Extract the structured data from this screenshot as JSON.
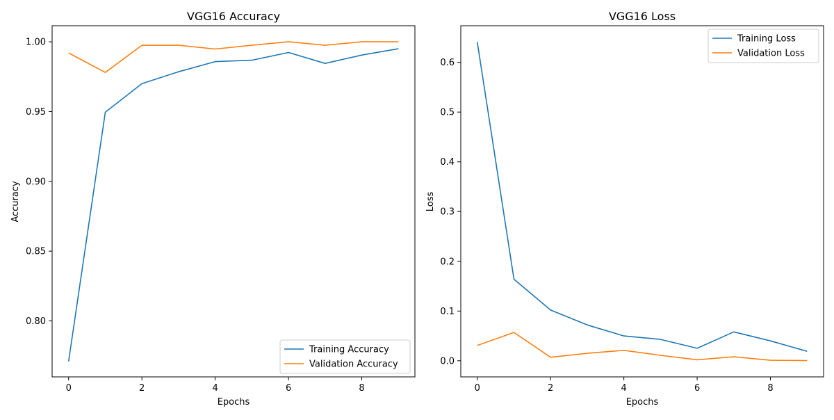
{
  "chart_data": [
    {
      "type": "line",
      "title": "VGG16 Accuracy",
      "xlabel": "Epochs",
      "ylabel": "Accuracy",
      "x": [
        0,
        1,
        2,
        3,
        4,
        5,
        6,
        7,
        8,
        9
      ],
      "xticks": [
        "0",
        "2",
        "4",
        "6",
        "8"
      ],
      "xtick_values": [
        0,
        2,
        4,
        6,
        8
      ],
      "yticks": [
        "0.80",
        "0.85",
        "0.90",
        "0.95",
        "1.00"
      ],
      "ytick_values": [
        0.8,
        0.85,
        0.9,
        0.95,
        1.0
      ],
      "xlim": [
        -0.45,
        9.45
      ],
      "ylim": [
        0.7599,
        1.0115
      ],
      "legend_loc": "lower-right",
      "grid": false,
      "series": [
        {
          "name": "Training Accuracy",
          "color": "#1f77b4",
          "values": [
            0.771,
            0.9495,
            0.97,
            0.9785,
            0.9858,
            0.9868,
            0.9923,
            0.9845,
            0.9905,
            0.995
          ]
        },
        {
          "name": "Validation Accuracy",
          "color": "#ff7f0e",
          "values": [
            0.992,
            0.978,
            0.9975,
            0.9975,
            0.9948,
            0.9975,
            1.0,
            0.9975,
            1.0,
            1.0
          ]
        }
      ]
    },
    {
      "type": "line",
      "title": "VGG16 Loss",
      "xlabel": "Epochs",
      "ylabel": "Loss",
      "x": [
        0,
        1,
        2,
        3,
        4,
        5,
        6,
        7,
        8,
        9
      ],
      "xticks": [
        "0",
        "2",
        "4",
        "6",
        "8"
      ],
      "xtick_values": [
        0,
        2,
        4,
        6,
        8
      ],
      "yticks": [
        "0.0",
        "0.1",
        "0.2",
        "0.3",
        "0.4",
        "0.5",
        "0.6"
      ],
      "ytick_values": [
        0.0,
        0.1,
        0.2,
        0.3,
        0.4,
        0.5,
        0.6
      ],
      "xlim": [
        -0.45,
        9.45
      ],
      "ylim": [
        -0.0324,
        0.6736
      ],
      "legend_loc": "upper-right",
      "grid": false,
      "series": [
        {
          "name": "Training Loss",
          "color": "#1f77b4",
          "values": [
            0.641,
            0.164,
            0.102,
            0.072,
            0.05,
            0.043,
            0.025,
            0.058,
            0.04,
            0.019
          ]
        },
        {
          "name": "Validation Loss",
          "color": "#ff7f0e",
          "values": [
            0.031,
            0.057,
            0.007,
            0.015,
            0.021,
            0.011,
            0.002,
            0.008,
            0.001,
            0.0005
          ]
        }
      ]
    }
  ]
}
